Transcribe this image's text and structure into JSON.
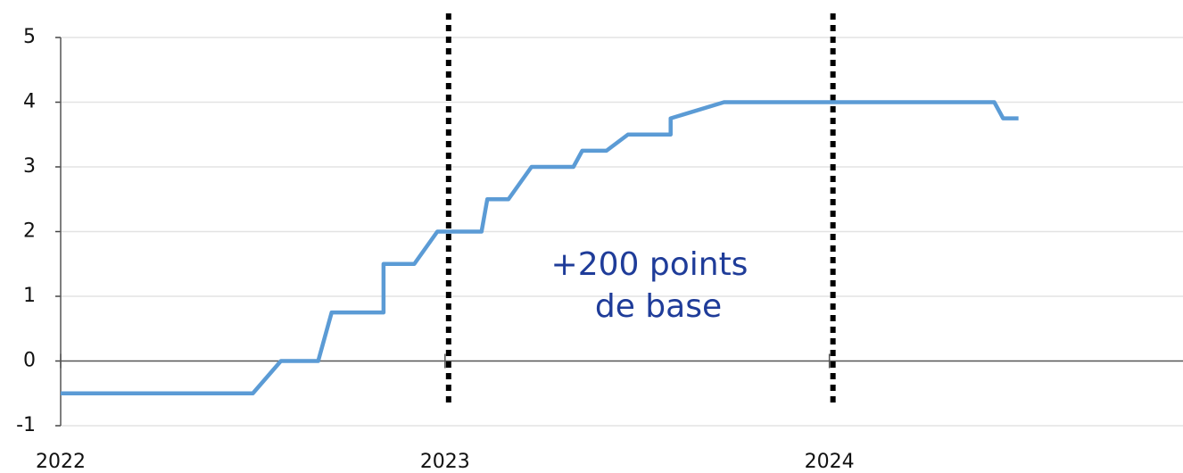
{
  "chart_data": {
    "type": "line",
    "annotation": [
      "+200 points",
      "de base"
    ],
    "xlim": [
      2022,
      2024.92
    ],
    "xticks": [
      2022,
      2023,
      2024
    ],
    "ylim": [
      -1,
      5
    ],
    "yticks": [
      -1,
      0,
      1,
      2,
      3,
      4,
      5
    ],
    "grid": true,
    "series": [
      {
        "color": "#5b9bd5",
        "x": [
          2022.0,
          2022.5,
          2022.573,
          2022.67,
          2022.705,
          2022.84,
          2022.84,
          2022.92,
          2022.98,
          2023.095,
          2023.11,
          2023.165,
          2023.225,
          2023.334,
          2023.357,
          2023.42,
          2023.476,
          2023.587,
          2023.587,
          2023.726,
          2024.429,
          2024.452,
          2024.492
        ],
        "values": [
          -0.5,
          -0.5,
          0,
          0,
          0.75,
          0.75,
          1.5,
          1.5,
          2,
          2,
          2.5,
          2.5,
          3,
          3,
          3.25,
          3.25,
          3.5,
          3.5,
          3.75,
          4,
          4,
          3.75,
          3.75
        ]
      }
    ]
  }
}
